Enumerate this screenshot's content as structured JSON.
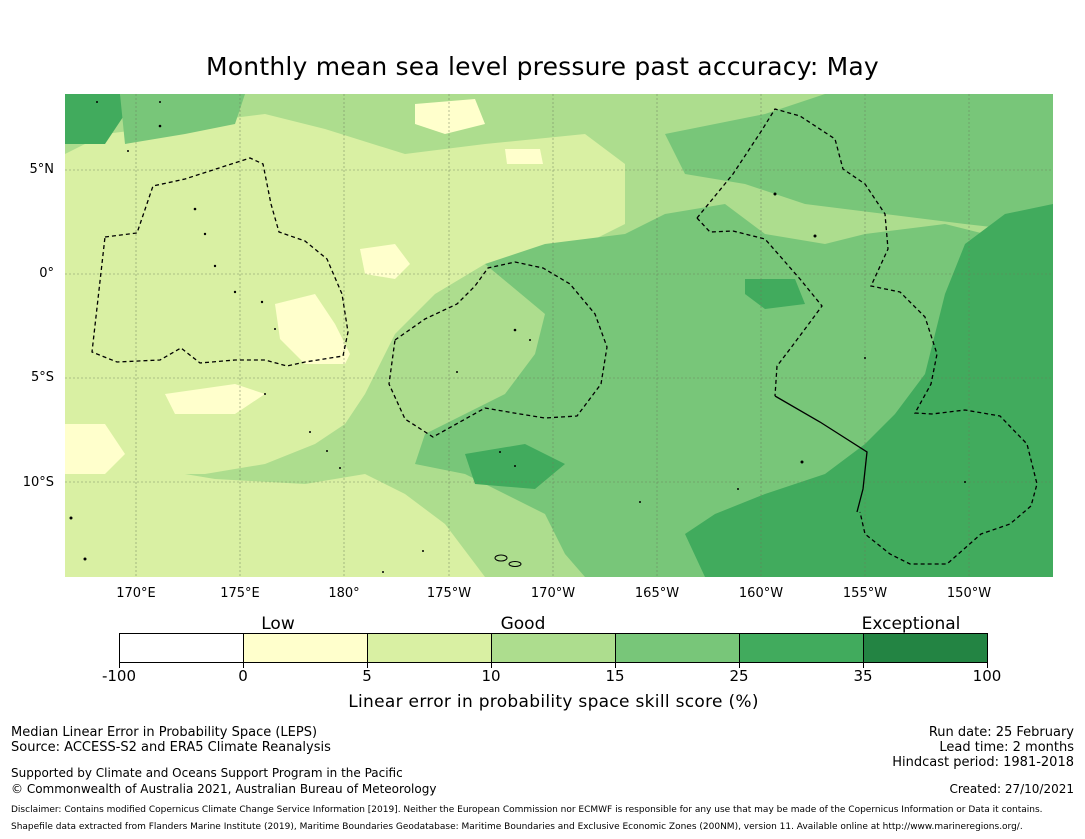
{
  "title": "Monthly mean sea level pressure past accuracy: May",
  "map": {
    "latitude_labels": [
      "5°N",
      "0°",
      "5°S",
      "10°S"
    ],
    "longitude_labels": [
      "170°E",
      "175°E",
      "180°",
      "175°W",
      "170°W",
      "165°W",
      "160°W",
      "155°W",
      "150°W"
    ],
    "colors": {
      "low": "#ffffcc",
      "fair": "#d9f0a3",
      "good": "#addd8e",
      "very_good": "#78c679",
      "high": "#41ab5d",
      "exceptional": "#238443"
    }
  },
  "colorbar": {
    "category_labels": {
      "low": "Low",
      "good": "Good",
      "exceptional": "Exceptional"
    },
    "ticks": [
      "-100",
      "0",
      "5",
      "10",
      "15",
      "25",
      "35",
      "100"
    ],
    "segment_colors": [
      "#ffffff",
      "#ffffcc",
      "#d9f0a3",
      "#addd8e",
      "#78c679",
      "#41ab5d",
      "#238443"
    ],
    "label": "Linear error in probability space skill score (%)"
  },
  "footer": {
    "method": "Median Linear Error in Probability Space (LEPS)",
    "source": "Source: ACCESS-S2 and ERA5 Climate Reanalysis",
    "support": "Supported by Climate and Oceans Support Program in the Pacific",
    "copyright": "© Commonwealth of Australia 2021, Australian Bureau of Meteorology",
    "run_date": "Run date: 25 February",
    "lead_time": "Lead time: 2 months",
    "hindcast": "Hindcast period: 1981-2018",
    "created": "Created: 27/10/2021",
    "disclaimer1": "Disclaimer: Contains modified Copernicus Climate Change Service Information [2019]. Neither the European Commission nor ECMWF is responsible for any use that may be made of the Copernicus Information or Data it contains.",
    "disclaimer2": "Shapefile data extracted from Flanders Marine Institute (2019), Maritime Boundaries Geodatabase: Maritime Boundaries and Exclusive Economic Zones (200NM), version 11. Available online at http://www.marineregions.org/."
  }
}
